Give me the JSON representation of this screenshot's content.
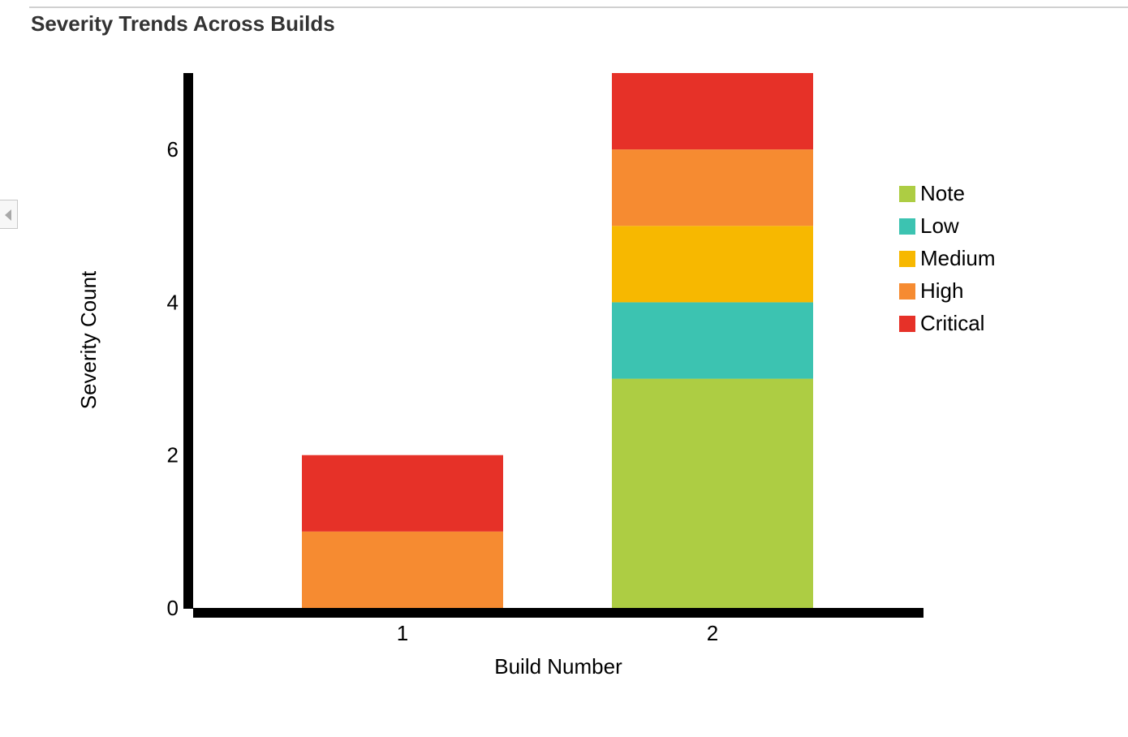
{
  "panel": {
    "title": "Severity Trends Across Builds",
    "collapse_icon": "chevron-left-icon"
  },
  "chart_data": {
    "type": "bar",
    "stacked": true,
    "xlabel": "Build Number",
    "ylabel": "Severity Count",
    "categories": [
      "1",
      "2"
    ],
    "ylim": [
      0,
      7
    ],
    "yticks": [
      0,
      2,
      4,
      6
    ],
    "grid": false,
    "legend_position": "right",
    "series": [
      {
        "name": "Note",
        "color": "#adcd43",
        "values": [
          0,
          3
        ]
      },
      {
        "name": "Low",
        "color": "#3cc3b1",
        "values": [
          0,
          1
        ]
      },
      {
        "name": "Medium",
        "color": "#f7b800",
        "values": [
          0,
          1
        ]
      },
      {
        "name": "High",
        "color": "#f68b31",
        "values": [
          1,
          1
        ]
      },
      {
        "name": "Critical",
        "color": "#e63128",
        "values": [
          1,
          1
        ]
      }
    ]
  }
}
